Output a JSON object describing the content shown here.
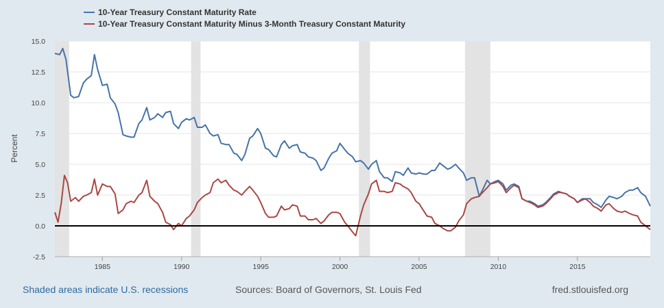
{
  "footer": {
    "recessions_note": "Shaded areas indicate U.S. recessions",
    "sources": "Sources: Board of Governors, St. Louis Fed",
    "site": "fred.stlouisfed.org"
  },
  "chart_data": {
    "type": "line",
    "title": "",
    "xlabel": "",
    "ylabel": "Percent",
    "xlim": [
      1982.0,
      2019.6
    ],
    "ylim": [
      -2.5,
      15.0
    ],
    "yticks": [
      -2.5,
      0.0,
      2.5,
      5.0,
      7.5,
      10.0,
      12.5,
      15.0
    ],
    "ytick_labels": [
      "-2.5",
      "0.0",
      "2.5",
      "5.0",
      "7.5",
      "10.0",
      "12.5",
      "15.0"
    ],
    "xticks": [
      1985,
      1990,
      1995,
      2000,
      2005,
      2010,
      2015
    ],
    "xtick_labels": [
      "1985",
      "1990",
      "1995",
      "2000",
      "2005",
      "2010",
      "2015"
    ],
    "grid": "horizontal",
    "legend_position": "top-left",
    "zero_line": 0,
    "recessions": [
      [
        1982.0,
        1982.9
      ],
      [
        1990.6,
        1991.2
      ],
      [
        2001.2,
        2001.9
      ],
      [
        2007.9,
        2009.5
      ]
    ],
    "series": [
      {
        "name": "10-Year Treasury Constant Maturity Rate",
        "color": "#4572a7",
        "points": [
          [
            1982.0,
            14.0
          ],
          [
            1982.3,
            13.9
          ],
          [
            1982.5,
            14.4
          ],
          [
            1982.7,
            13.5
          ],
          [
            1983.0,
            10.6
          ],
          [
            1983.2,
            10.4
          ],
          [
            1983.5,
            10.5
          ],
          [
            1983.8,
            11.6
          ],
          [
            1984.0,
            11.9
          ],
          [
            1984.3,
            12.2
          ],
          [
            1984.5,
            13.9
          ],
          [
            1984.7,
            12.7
          ],
          [
            1985.0,
            11.4
          ],
          [
            1985.3,
            11.5
          ],
          [
            1985.5,
            10.4
          ],
          [
            1985.8,
            9.9
          ],
          [
            1986.0,
            9.2
          ],
          [
            1986.3,
            7.4
          ],
          [
            1986.5,
            7.3
          ],
          [
            1986.8,
            7.2
          ],
          [
            1987.0,
            7.2
          ],
          [
            1987.3,
            8.3
          ],
          [
            1987.5,
            8.6
          ],
          [
            1987.8,
            9.6
          ],
          [
            1988.0,
            8.6
          ],
          [
            1988.3,
            8.8
          ],
          [
            1988.5,
            9.1
          ],
          [
            1988.8,
            8.8
          ],
          [
            1989.0,
            9.2
          ],
          [
            1989.3,
            9.3
          ],
          [
            1989.5,
            8.3
          ],
          [
            1989.8,
            7.9
          ],
          [
            1990.0,
            8.4
          ],
          [
            1990.3,
            8.7
          ],
          [
            1990.5,
            8.6
          ],
          [
            1990.8,
            8.8
          ],
          [
            1991.0,
            8.0
          ],
          [
            1991.3,
            8.0
          ],
          [
            1991.5,
            8.2
          ],
          [
            1991.8,
            7.5
          ],
          [
            1992.0,
            7.3
          ],
          [
            1992.3,
            7.4
          ],
          [
            1992.5,
            6.7
          ],
          [
            1992.8,
            6.6
          ],
          [
            1993.0,
            6.6
          ],
          [
            1993.3,
            5.9
          ],
          [
            1993.5,
            5.8
          ],
          [
            1993.8,
            5.3
          ],
          [
            1994.0,
            5.8
          ],
          [
            1994.3,
            7.1
          ],
          [
            1994.5,
            7.3
          ],
          [
            1994.8,
            7.9
          ],
          [
            1995.0,
            7.5
          ],
          [
            1995.3,
            6.3
          ],
          [
            1995.5,
            6.2
          ],
          [
            1995.8,
            5.7
          ],
          [
            1996.0,
            5.6
          ],
          [
            1996.3,
            6.6
          ],
          [
            1996.5,
            6.9
          ],
          [
            1996.8,
            6.3
          ],
          [
            1997.0,
            6.5
          ],
          [
            1997.3,
            6.6
          ],
          [
            1997.5,
            6.0
          ],
          [
            1997.8,
            5.9
          ],
          [
            1998.0,
            5.6
          ],
          [
            1998.3,
            5.5
          ],
          [
            1998.5,
            5.3
          ],
          [
            1998.8,
            4.5
          ],
          [
            1999.0,
            4.7
          ],
          [
            1999.3,
            5.5
          ],
          [
            1999.5,
            5.9
          ],
          [
            1999.8,
            6.1
          ],
          [
            2000.0,
            6.7
          ],
          [
            2000.3,
            6.2
          ],
          [
            2000.5,
            5.9
          ],
          [
            2000.8,
            5.6
          ],
          [
            2001.0,
            5.2
          ],
          [
            2001.3,
            5.3
          ],
          [
            2001.5,
            5.1
          ],
          [
            2001.8,
            4.6
          ],
          [
            2002.0,
            5.0
          ],
          [
            2002.3,
            5.3
          ],
          [
            2002.5,
            4.4
          ],
          [
            2002.8,
            3.9
          ],
          [
            2003.0,
            3.9
          ],
          [
            2003.3,
            3.6
          ],
          [
            2003.5,
            4.4
          ],
          [
            2003.8,
            4.3
          ],
          [
            2004.0,
            4.1
          ],
          [
            2004.3,
            4.7
          ],
          [
            2004.5,
            4.3
          ],
          [
            2004.8,
            4.2
          ],
          [
            2005.0,
            4.3
          ],
          [
            2005.3,
            4.2
          ],
          [
            2005.5,
            4.2
          ],
          [
            2005.8,
            4.5
          ],
          [
            2006.0,
            4.5
          ],
          [
            2006.3,
            5.1
          ],
          [
            2006.5,
            4.9
          ],
          [
            2006.8,
            4.6
          ],
          [
            2007.0,
            4.7
          ],
          [
            2007.3,
            5.0
          ],
          [
            2007.5,
            4.7
          ],
          [
            2007.8,
            4.3
          ],
          [
            2008.0,
            3.7
          ],
          [
            2008.3,
            3.9
          ],
          [
            2008.5,
            3.9
          ],
          [
            2008.8,
            2.4
          ],
          [
            2009.0,
            2.9
          ],
          [
            2009.3,
            3.7
          ],
          [
            2009.5,
            3.4
          ],
          [
            2009.8,
            3.6
          ],
          [
            2010.0,
            3.7
          ],
          [
            2010.3,
            3.4
          ],
          [
            2010.5,
            2.9
          ],
          [
            2010.8,
            3.3
          ],
          [
            2011.0,
            3.4
          ],
          [
            2011.3,
            3.2
          ],
          [
            2011.5,
            2.2
          ],
          [
            2011.8,
            2.0
          ],
          [
            2012.0,
            2.0
          ],
          [
            2012.3,
            1.8
          ],
          [
            2012.5,
            1.6
          ],
          [
            2012.8,
            1.7
          ],
          [
            2013.0,
            1.9
          ],
          [
            2013.3,
            2.3
          ],
          [
            2013.5,
            2.6
          ],
          [
            2013.8,
            2.8
          ],
          [
            2014.0,
            2.7
          ],
          [
            2014.3,
            2.6
          ],
          [
            2014.5,
            2.4
          ],
          [
            2014.8,
            2.2
          ],
          [
            2015.0,
            1.9
          ],
          [
            2015.3,
            2.2
          ],
          [
            2015.5,
            2.2
          ],
          [
            2015.8,
            2.2
          ],
          [
            2016.0,
            1.9
          ],
          [
            2016.3,
            1.7
          ],
          [
            2016.5,
            1.5
          ],
          [
            2016.8,
            2.1
          ],
          [
            2017.0,
            2.4
          ],
          [
            2017.3,
            2.3
          ],
          [
            2017.5,
            2.2
          ],
          [
            2017.8,
            2.4
          ],
          [
            2018.0,
            2.7
          ],
          [
            2018.3,
            2.9
          ],
          [
            2018.5,
            2.9
          ],
          [
            2018.8,
            3.1
          ],
          [
            2019.0,
            2.7
          ],
          [
            2019.3,
            2.4
          ],
          [
            2019.6,
            1.6
          ]
        ]
      },
      {
        "name": "10-Year Treasury Constant Maturity Minus 3-Month Treasury Constant Maturity",
        "color": "#aa4643",
        "points": [
          [
            1982.0,
            1.1
          ],
          [
            1982.2,
            0.3
          ],
          [
            1982.4,
            1.8
          ],
          [
            1982.6,
            4.1
          ],
          [
            1982.8,
            3.5
          ],
          [
            1983.0,
            2.0
          ],
          [
            1983.3,
            2.3
          ],
          [
            1983.5,
            2.0
          ],
          [
            1983.8,
            2.4
          ],
          [
            1984.0,
            2.5
          ],
          [
            1984.3,
            2.7
          ],
          [
            1984.5,
            3.8
          ],
          [
            1984.7,
            2.5
          ],
          [
            1985.0,
            3.4
          ],
          [
            1985.3,
            3.2
          ],
          [
            1985.5,
            3.2
          ],
          [
            1985.8,
            2.6
          ],
          [
            1986.0,
            1.0
          ],
          [
            1986.3,
            1.3
          ],
          [
            1986.5,
            1.8
          ],
          [
            1986.8,
            2.0
          ],
          [
            1987.0,
            1.9
          ],
          [
            1987.3,
            2.5
          ],
          [
            1987.5,
            2.7
          ],
          [
            1987.8,
            3.7
          ],
          [
            1988.0,
            2.4
          ],
          [
            1988.3,
            2.0
          ],
          [
            1988.5,
            1.8
          ],
          [
            1988.8,
            1.1
          ],
          [
            1989.0,
            0.3
          ],
          [
            1989.3,
            0.1
          ],
          [
            1989.5,
            -0.3
          ],
          [
            1989.8,
            0.2
          ],
          [
            1990.0,
            0.0
          ],
          [
            1990.3,
            0.6
          ],
          [
            1990.5,
            0.8
          ],
          [
            1990.8,
            1.3
          ],
          [
            1991.0,
            1.9
          ],
          [
            1991.3,
            2.3
          ],
          [
            1991.5,
            2.5
          ],
          [
            1991.8,
            2.7
          ],
          [
            1992.0,
            3.5
          ],
          [
            1992.3,
            3.8
          ],
          [
            1992.5,
            3.5
          ],
          [
            1992.8,
            3.7
          ],
          [
            1993.0,
            3.3
          ],
          [
            1993.3,
            2.9
          ],
          [
            1993.5,
            2.8
          ],
          [
            1993.8,
            2.5
          ],
          [
            1994.0,
            2.8
          ],
          [
            1994.3,
            3.2
          ],
          [
            1994.5,
            2.9
          ],
          [
            1994.8,
            2.4
          ],
          [
            1995.0,
            1.9
          ],
          [
            1995.3,
            1.0
          ],
          [
            1995.5,
            0.7
          ],
          [
            1995.8,
            0.7
          ],
          [
            1996.0,
            0.8
          ],
          [
            1996.3,
            1.6
          ],
          [
            1996.5,
            1.3
          ],
          [
            1996.8,
            1.4
          ],
          [
            1997.0,
            1.7
          ],
          [
            1997.3,
            1.6
          ],
          [
            1997.5,
            0.8
          ],
          [
            1997.8,
            0.8
          ],
          [
            1998.0,
            0.5
          ],
          [
            1998.3,
            0.5
          ],
          [
            1998.5,
            0.6
          ],
          [
            1998.8,
            0.2
          ],
          [
            1999.0,
            0.4
          ],
          [
            1999.3,
            0.9
          ],
          [
            1999.5,
            1.1
          ],
          [
            1999.8,
            1.1
          ],
          [
            2000.0,
            1.0
          ],
          [
            2000.3,
            0.3
          ],
          [
            2000.5,
            0.0
          ],
          [
            2000.8,
            -0.5
          ],
          [
            2001.0,
            -0.8
          ],
          [
            2001.3,
            0.8
          ],
          [
            2001.5,
            1.7
          ],
          [
            2001.8,
            2.6
          ],
          [
            2002.0,
            3.4
          ],
          [
            2002.3,
            3.7
          ],
          [
            2002.5,
            2.8
          ],
          [
            2002.8,
            2.8
          ],
          [
            2003.0,
            2.7
          ],
          [
            2003.3,
            2.8
          ],
          [
            2003.5,
            3.5
          ],
          [
            2003.8,
            3.4
          ],
          [
            2004.0,
            3.2
          ],
          [
            2004.3,
            3.0
          ],
          [
            2004.5,
            2.7
          ],
          [
            2004.8,
            2.0
          ],
          [
            2005.0,
            1.8
          ],
          [
            2005.3,
            1.2
          ],
          [
            2005.5,
            0.8
          ],
          [
            2005.8,
            0.7
          ],
          [
            2006.0,
            0.2
          ],
          [
            2006.3,
            0.0
          ],
          [
            2006.5,
            -0.2
          ],
          [
            2006.8,
            -0.4
          ],
          [
            2007.0,
            -0.4
          ],
          [
            2007.3,
            -0.1
          ],
          [
            2007.5,
            0.4
          ],
          [
            2007.8,
            0.9
          ],
          [
            2008.0,
            1.8
          ],
          [
            2008.3,
            2.2
          ],
          [
            2008.5,
            2.3
          ],
          [
            2008.8,
            2.4
          ],
          [
            2009.0,
            2.7
          ],
          [
            2009.3,
            3.1
          ],
          [
            2009.5,
            3.4
          ],
          [
            2009.8,
            3.5
          ],
          [
            2010.0,
            3.6
          ],
          [
            2010.3,
            3.2
          ],
          [
            2010.5,
            2.7
          ],
          [
            2010.8,
            3.1
          ],
          [
            2011.0,
            3.3
          ],
          [
            2011.3,
            3.1
          ],
          [
            2011.5,
            2.2
          ],
          [
            2011.8,
            2.0
          ],
          [
            2012.0,
            1.9
          ],
          [
            2012.3,
            1.7
          ],
          [
            2012.5,
            1.5
          ],
          [
            2012.8,
            1.6
          ],
          [
            2013.0,
            1.8
          ],
          [
            2013.3,
            2.2
          ],
          [
            2013.5,
            2.5
          ],
          [
            2013.8,
            2.7
          ],
          [
            2014.0,
            2.7
          ],
          [
            2014.3,
            2.6
          ],
          [
            2014.5,
            2.4
          ],
          [
            2014.8,
            2.2
          ],
          [
            2015.0,
            1.9
          ],
          [
            2015.3,
            2.1
          ],
          [
            2015.5,
            2.2
          ],
          [
            2015.8,
            1.9
          ],
          [
            2016.0,
            1.6
          ],
          [
            2016.3,
            1.4
          ],
          [
            2016.5,
            1.2
          ],
          [
            2016.8,
            1.7
          ],
          [
            2017.0,
            1.8
          ],
          [
            2017.3,
            1.4
          ],
          [
            2017.5,
            1.2
          ],
          [
            2017.8,
            1.1
          ],
          [
            2018.0,
            1.2
          ],
          [
            2018.3,
            1.0
          ],
          [
            2018.5,
            0.9
          ],
          [
            2018.8,
            0.8
          ],
          [
            2019.0,
            0.3
          ],
          [
            2019.3,
            0.0
          ],
          [
            2019.6,
            -0.3
          ]
        ]
      }
    ]
  }
}
